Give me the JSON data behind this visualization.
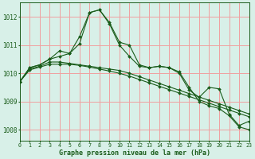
{
  "xlabel": "Graphe pression niveau de la mer (hPa)",
  "background_color": "#d8f0e8",
  "grid_color": "#f0a0a0",
  "line_color": "#1a5c1a",
  "ylim": [
    1007.6,
    1012.5
  ],
  "xlim": [
    0,
    23
  ],
  "yticks": [
    1008,
    1009,
    1010,
    1011,
    1012
  ],
  "xticks": [
    0,
    1,
    2,
    3,
    4,
    5,
    6,
    7,
    8,
    9,
    10,
    11,
    12,
    13,
    14,
    15,
    16,
    17,
    18,
    19,
    20,
    21,
    22,
    23
  ],
  "series": [
    [
      1009.7,
      1010.2,
      1010.3,
      1010.5,
      1010.8,
      1010.7,
      1011.3,
      1012.15,
      1012.25,
      1011.8,
      1011.1,
      1011.0,
      1010.3,
      1010.2,
      1010.25,
      1010.2,
      1010.05,
      1009.5,
      1009.0,
      1008.85,
      1008.75,
      1008.5,
      1008.1,
      1008.0
    ],
    [
      1009.7,
      1010.2,
      1010.3,
      1010.5,
      1010.6,
      1010.7,
      1011.05,
      1012.15,
      1012.25,
      1011.75,
      1011.0,
      1010.6,
      1010.25,
      1010.2,
      1010.25,
      1010.2,
      1010.0,
      1009.4,
      1009.15,
      1009.5,
      1009.45,
      1008.55,
      1008.15,
      1008.3
    ],
    [
      1009.7,
      1010.15,
      1010.25,
      1010.4,
      1010.4,
      1010.35,
      1010.3,
      1010.25,
      1010.2,
      1010.15,
      1010.1,
      1010.0,
      1009.88,
      1009.76,
      1009.64,
      1009.52,
      1009.4,
      1009.28,
      1009.16,
      1009.04,
      1008.92,
      1008.8,
      1008.68,
      1008.56
    ],
    [
      1009.7,
      1010.12,
      1010.22,
      1010.32,
      1010.32,
      1010.32,
      1010.28,
      1010.22,
      1010.15,
      1010.08,
      1010.0,
      1009.9,
      1009.78,
      1009.66,
      1009.54,
      1009.42,
      1009.3,
      1009.18,
      1009.06,
      1008.94,
      1008.82,
      1008.7,
      1008.58,
      1008.46
    ]
  ]
}
